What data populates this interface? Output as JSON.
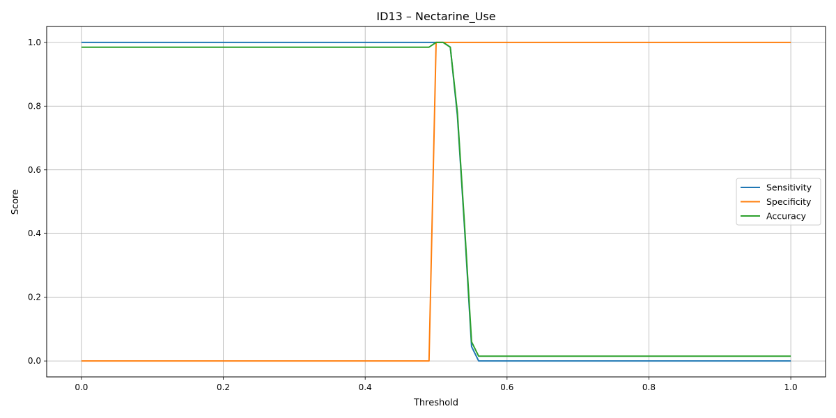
{
  "chart_data": {
    "type": "line",
    "title": "ID13 – Nectarine_Use",
    "xlabel": "Threshold",
    "ylabel": "Score",
    "xlim": [
      -0.049,
      1.049
    ],
    "ylim": [
      -0.05,
      1.05
    ],
    "xticks": [
      0.0,
      0.2,
      0.4,
      0.6,
      0.8,
      1.0
    ],
    "xtick_labels": [
      "0.0",
      "0.2",
      "0.4",
      "0.6",
      "0.8",
      "1.0"
    ],
    "yticks": [
      0.0,
      0.2,
      0.4,
      0.6,
      0.8,
      1.0
    ],
    "ytick_labels": [
      "0.0",
      "0.2",
      "0.4",
      "0.6",
      "0.8",
      "1.0"
    ],
    "grid": true,
    "legend_position": "center-right",
    "series": [
      {
        "name": "Sensitivity",
        "color": "#1f77b4",
        "x": [
          0.0,
          0.49,
          0.5,
          0.51,
          0.52,
          0.53,
          0.54,
          0.55,
          0.56,
          0.57,
          1.0
        ],
        "y": [
          1.0,
          1.0,
          1.0,
          1.0,
          0.985,
          0.77,
          0.42,
          0.045,
          0.0,
          0.0,
          0.0
        ]
      },
      {
        "name": "Specificity",
        "color": "#ff7f0e",
        "x": [
          0.0,
          0.49,
          0.5,
          0.51,
          1.0
        ],
        "y": [
          0.0,
          0.0,
          1.0,
          1.0,
          1.0
        ]
      },
      {
        "name": "Accuracy",
        "color": "#2ca02c",
        "x": [
          0.0,
          0.49,
          0.5,
          0.51,
          0.52,
          0.53,
          0.54,
          0.55,
          0.56,
          0.57,
          1.0
        ],
        "y": [
          0.985,
          0.985,
          1.0,
          1.0,
          0.985,
          0.78,
          0.43,
          0.06,
          0.015,
          0.015,
          0.015
        ]
      }
    ]
  }
}
